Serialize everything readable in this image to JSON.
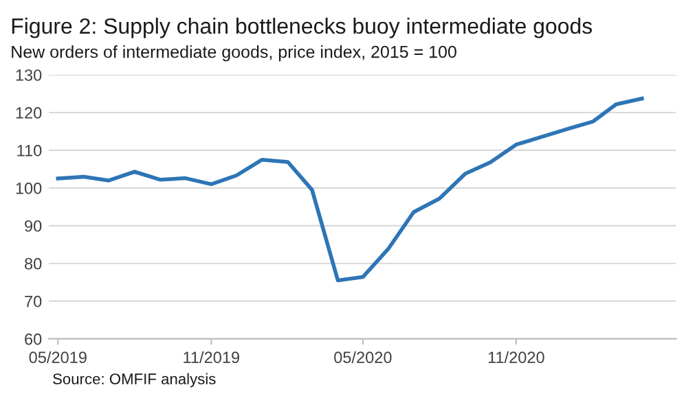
{
  "chart_data": {
    "type": "line",
    "title": "Figure 2: Supply chain bottlenecks buoy intermediate goods",
    "subtitle": "New orders of intermediate goods, price index, 2015 = 100",
    "x": [
      "2019-05",
      "2019-06",
      "2019-07",
      "2019-08",
      "2019-09",
      "2019-10",
      "2019-11",
      "2019-12",
      "2020-01",
      "2020-02",
      "2020-03",
      "2020-04",
      "2020-05",
      "2020-06",
      "2020-07",
      "2020-08",
      "2020-09",
      "2020-10",
      "2020-11",
      "2020-12",
      "2021-01",
      "2021-02",
      "2021-03",
      "2021-04"
    ],
    "series": [
      {
        "color": "#2e75b6",
        "values": [
          102.5,
          103,
          102,
          104.3,
          102.2,
          102.6,
          101,
          103.3,
          107.5,
          106.9,
          99.5,
          75.5,
          76.4,
          84,
          93.6,
          97.2,
          103.8,
          106.8,
          111.5,
          113.5,
          115.6,
          117.6,
          122.2,
          123.7
        ]
      }
    ],
    "xlim": [
      "2019-04-20",
      "2021-05-12"
    ],
    "xticks": [
      {
        "value": "2019-05",
        "label": "05/2019"
      },
      {
        "value": "2019-11",
        "label": "11/2019"
      },
      {
        "value": "2020-05",
        "label": "05/2020"
      },
      {
        "value": "2020-11",
        "label": "11/2020"
      }
    ],
    "ylim": [
      60,
      130
    ],
    "yticks": [
      60,
      70,
      80,
      90,
      100,
      110,
      120,
      130
    ],
    "grid": "y",
    "marker": "none",
    "line_style": "solid",
    "legend": false,
    "annotations": [
      "Source: OMFIF analysis"
    ]
  }
}
